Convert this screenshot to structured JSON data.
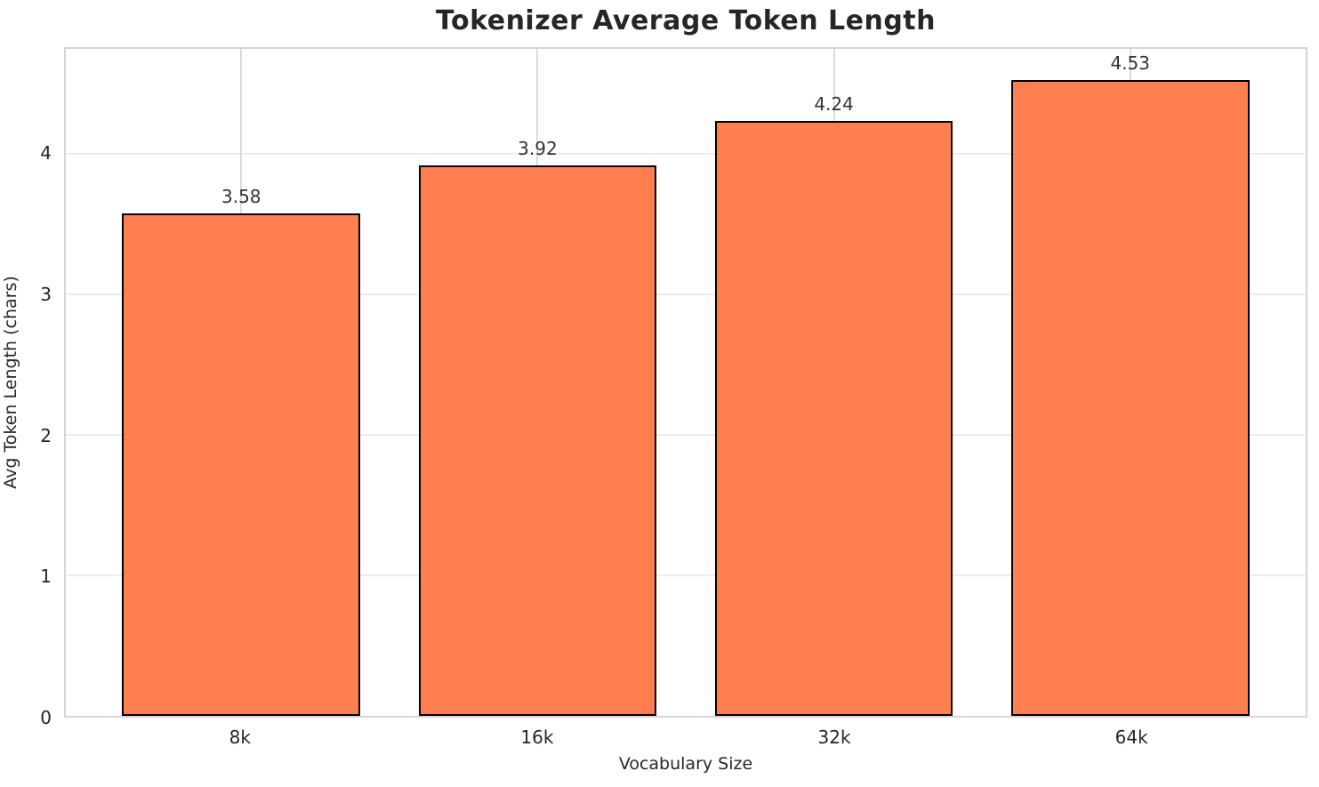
{
  "title": "Tokenizer Average Token Length",
  "chart_data": {
    "type": "bar",
    "title": "Tokenizer Average Token Length",
    "xlabel": "Vocabulary Size",
    "ylabel": "Avg Token Length (chars)",
    "categories": [
      "8k",
      "16k",
      "32k",
      "64k"
    ],
    "values": [
      3.58,
      3.92,
      4.24,
      4.53
    ],
    "value_labels": [
      "3.58",
      "3.92",
      "4.24",
      "4.53"
    ],
    "ylim": [
      0,
      4.75
    ],
    "yticks": [
      0,
      1,
      2,
      3,
      4
    ],
    "grid": true,
    "legend": "none",
    "colors": {
      "bar_fill": "#FF7F50",
      "bar_edge": "#000000",
      "grid_horizontal": "#ececec",
      "grid_vertical": "#dcdcdc",
      "spine": "#d5d5d5",
      "text": "#262626",
      "value_label_text": "#333333",
      "background": "#ffffff"
    }
  }
}
